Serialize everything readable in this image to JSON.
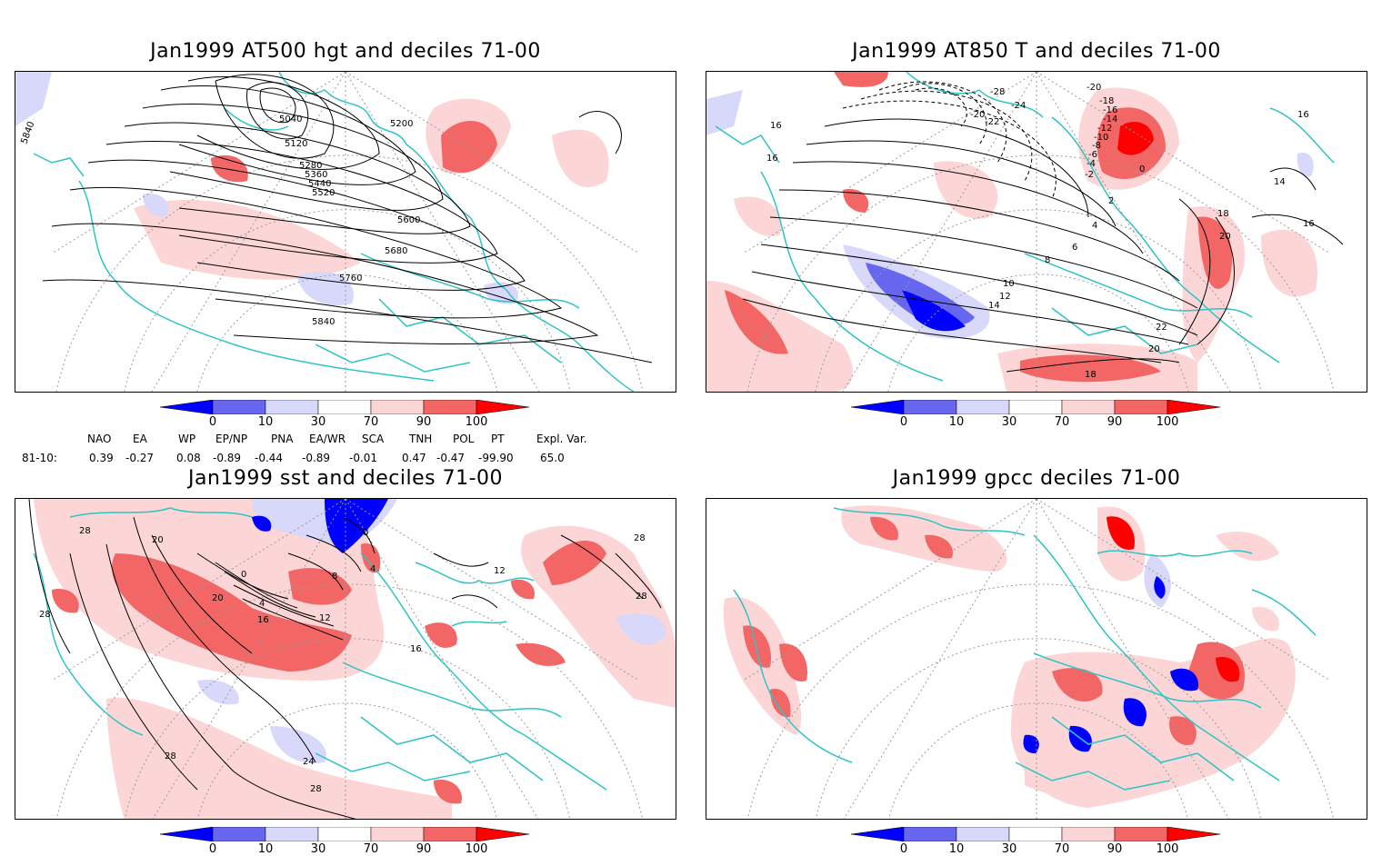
{
  "panels": [
    {
      "title": "Jan1999 AT500 hgt and deciles 71-00",
      "contour_labels": [
        "5040",
        "5120",
        "5200",
        "5280",
        "5360",
        "5440",
        "5520",
        "5600",
        "5680",
        "5760",
        "5840",
        "5840"
      ]
    },
    {
      "title": "Jan1999 AT850 T and deciles 71-00",
      "contour_labels": [
        "-28",
        "-24",
        "-22",
        "-20",
        "-20",
        "-18",
        "-16",
        "-14",
        "-12",
        "-10",
        "-8",
        "-6",
        "-4",
        "-2",
        "0",
        "2",
        "4",
        "6",
        "8",
        "10",
        "12",
        "14",
        "14",
        "16",
        "16",
        "16",
        "16",
        "18",
        "18",
        "20",
        "20",
        "22"
      ]
    },
    {
      "title": "Jan1999 sst and deciles 71-00",
      "contour_labels": [
        "28",
        "28",
        "28",
        "28",
        "28",
        "28",
        "24",
        "20",
        "20",
        "16",
        "16",
        "12",
        "12",
        "8",
        "4",
        "4",
        "0",
        "0"
      ]
    },
    {
      "title": "Jan1999 gpcc deciles 71-00",
      "contour_labels": []
    }
  ],
  "colorbar": {
    "ticks": [
      "0",
      "10",
      "30",
      "70",
      "90",
      "100"
    ],
    "colors": [
      "#0000ff",
      "#6666ee",
      "#d8d8fa",
      "#ffffff",
      "#fcd6d6",
      "#f26666",
      "#ff0000"
    ]
  },
  "indices": {
    "header": [
      "NAO",
      "EA",
      "WP",
      "EP/NP",
      "PNA",
      "EA/WR",
      "SCA",
      "TNH",
      "POL",
      "PT",
      "Expl. Var."
    ],
    "row_label": "81-10:",
    "values": [
      "0.39",
      "-0.27",
      "0.08",
      "-0.89",
      "-0.44",
      "-0.89",
      "-0.01",
      "0.47",
      "-0.47",
      "-99.90",
      "65.0"
    ]
  },
  "colors": {
    "coast": "#2ec4c4",
    "grid": "#9a9a9a",
    "contour": "#000000"
  }
}
